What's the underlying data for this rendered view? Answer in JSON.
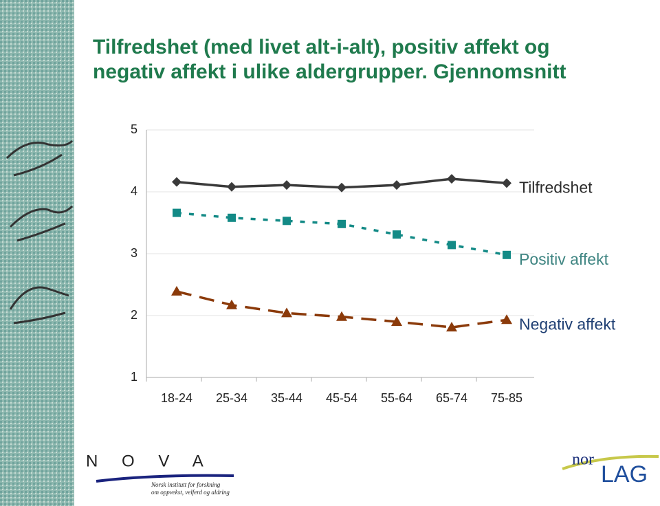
{
  "chart_data": {
    "type": "line",
    "title": [
      "Tilfredshet (med livet alt-i-alt), positiv affekt og",
      "negativ affekt i ulike aldergrupper. Gjennomsnitt"
    ],
    "categories": [
      "18-24",
      "25-34",
      "35-44",
      "45-54",
      "55-64",
      "65-74",
      "75-85"
    ],
    "series": [
      {
        "name": "Tilfredshet",
        "color": "#3a3a3a",
        "label_color": "#2b2b2b",
        "marker": "diamond",
        "line_style": "solid",
        "values": [
          4.16,
          4.08,
          4.11,
          4.07,
          4.11,
          4.21,
          4.14
        ]
      },
      {
        "name": "Positiv affekt",
        "color": "#138a86",
        "label_color": "#3f8582",
        "marker": "square",
        "line_style": "dotted",
        "values": [
          3.66,
          3.58,
          3.53,
          3.48,
          3.31,
          3.14,
          2.98
        ]
      },
      {
        "name": "Negativ affekt",
        "color": "#8b3a0a",
        "label_color": "#1f3f73",
        "marker": "triangle",
        "line_style": "dashed",
        "values": [
          2.39,
          2.17,
          2.04,
          1.98,
          1.9,
          1.81,
          1.93
        ]
      }
    ],
    "ylim": [
      1,
      5
    ],
    "yticks": [
      1,
      2,
      3,
      4,
      5
    ],
    "grid": true,
    "legend": "line-end"
  },
  "footer": {
    "nova": "N O V A",
    "nova_line1": "Norsk institutt for forskning",
    "nova_line2": "om oppvekst, velferd og aldring",
    "norlag_1": "nor",
    "norlag_2": "LAG"
  }
}
